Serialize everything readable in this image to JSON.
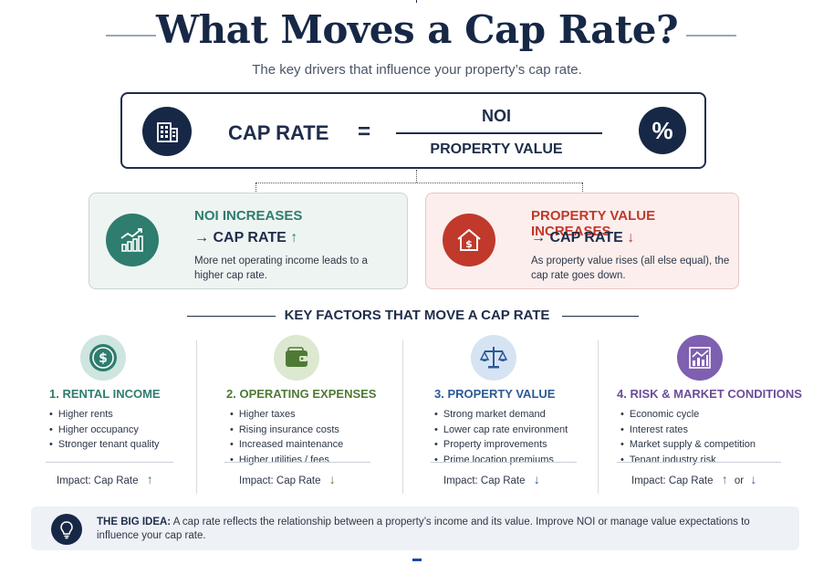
{
  "title": "What Moves a Cap Rate?",
  "subtitle": "The key drivers that influence your property’s cap rate.",
  "formula": {
    "left_term": "CAP RATE",
    "equals": "=",
    "numerator": "NOI",
    "denominator": "PROPERTY VALUE",
    "percent_symbol": "%",
    "left_icon": "building-icon"
  },
  "cards": [
    {
      "heading": "NOI INCREASES",
      "effect_prefix": "→",
      "effect_label": "CAP RATE",
      "effect_arrow": "↑",
      "description": "More net operating income leads to a higher cap rate.",
      "icon": "trend-chart-icon",
      "color": "#2e7d6e"
    },
    {
      "heading": "PROPERTY VALUE INCREASES",
      "effect_prefix": "→",
      "effect_label": "CAP RATE",
      "effect_arrow": "↓",
      "description": "As property value rises (all else equal), the cap rate goes down.",
      "icon": "house-dollar-icon",
      "color": "#c0392b"
    }
  ],
  "key_factors_title": "KEY FACTORS THAT MOVE A CAP RATE",
  "factors": [
    {
      "title": "1. RENTAL INCOME",
      "items": [
        "Higher rents",
        "Higher occupancy",
        "Stronger tenant quality"
      ],
      "impact_label": "Impact: Cap Rate",
      "impact_arrow": "↑",
      "icon": "dollar-coin-icon",
      "color": "#2e7d6e"
    },
    {
      "title": "2. OPERATING EXPENSES",
      "items": [
        "Higher taxes",
        "Rising insurance costs",
        "Increased maintenance",
        "Higher utilities / fees"
      ],
      "impact_label": "Impact: Cap Rate",
      "impact_arrow": "↓",
      "icon": "wallet-icon",
      "color": "#4f7a36"
    },
    {
      "title": "3. PROPERTY VALUE",
      "items": [
        "Strong market demand",
        "Lower cap rate environment",
        "Property improvements",
        "Prime location premiums"
      ],
      "impact_label": "Impact: Cap Rate",
      "impact_arrow": "↓",
      "icon": "scales-icon",
      "color": "#2b5a96"
    },
    {
      "title": "4. RISK & MARKET CONDITIONS",
      "items": [
        "Economic cycle",
        "Interest rates",
        "Market supply & competition",
        "Tenant industry risk"
      ],
      "impact_label": "Impact: Cap Rate",
      "impact_arrow": "↑",
      "impact_or": "or",
      "impact_arrow2": "↓",
      "icon": "line-chart-icon",
      "color": "#6b4c9a"
    }
  ],
  "big_idea": {
    "label": "THE BIG IDEA:",
    "text": "A cap rate reflects the relationship between a property’s income and its value. Improve NOI or manage value expectations to influence your cap rate.",
    "icon": "lightbulb-icon"
  }
}
